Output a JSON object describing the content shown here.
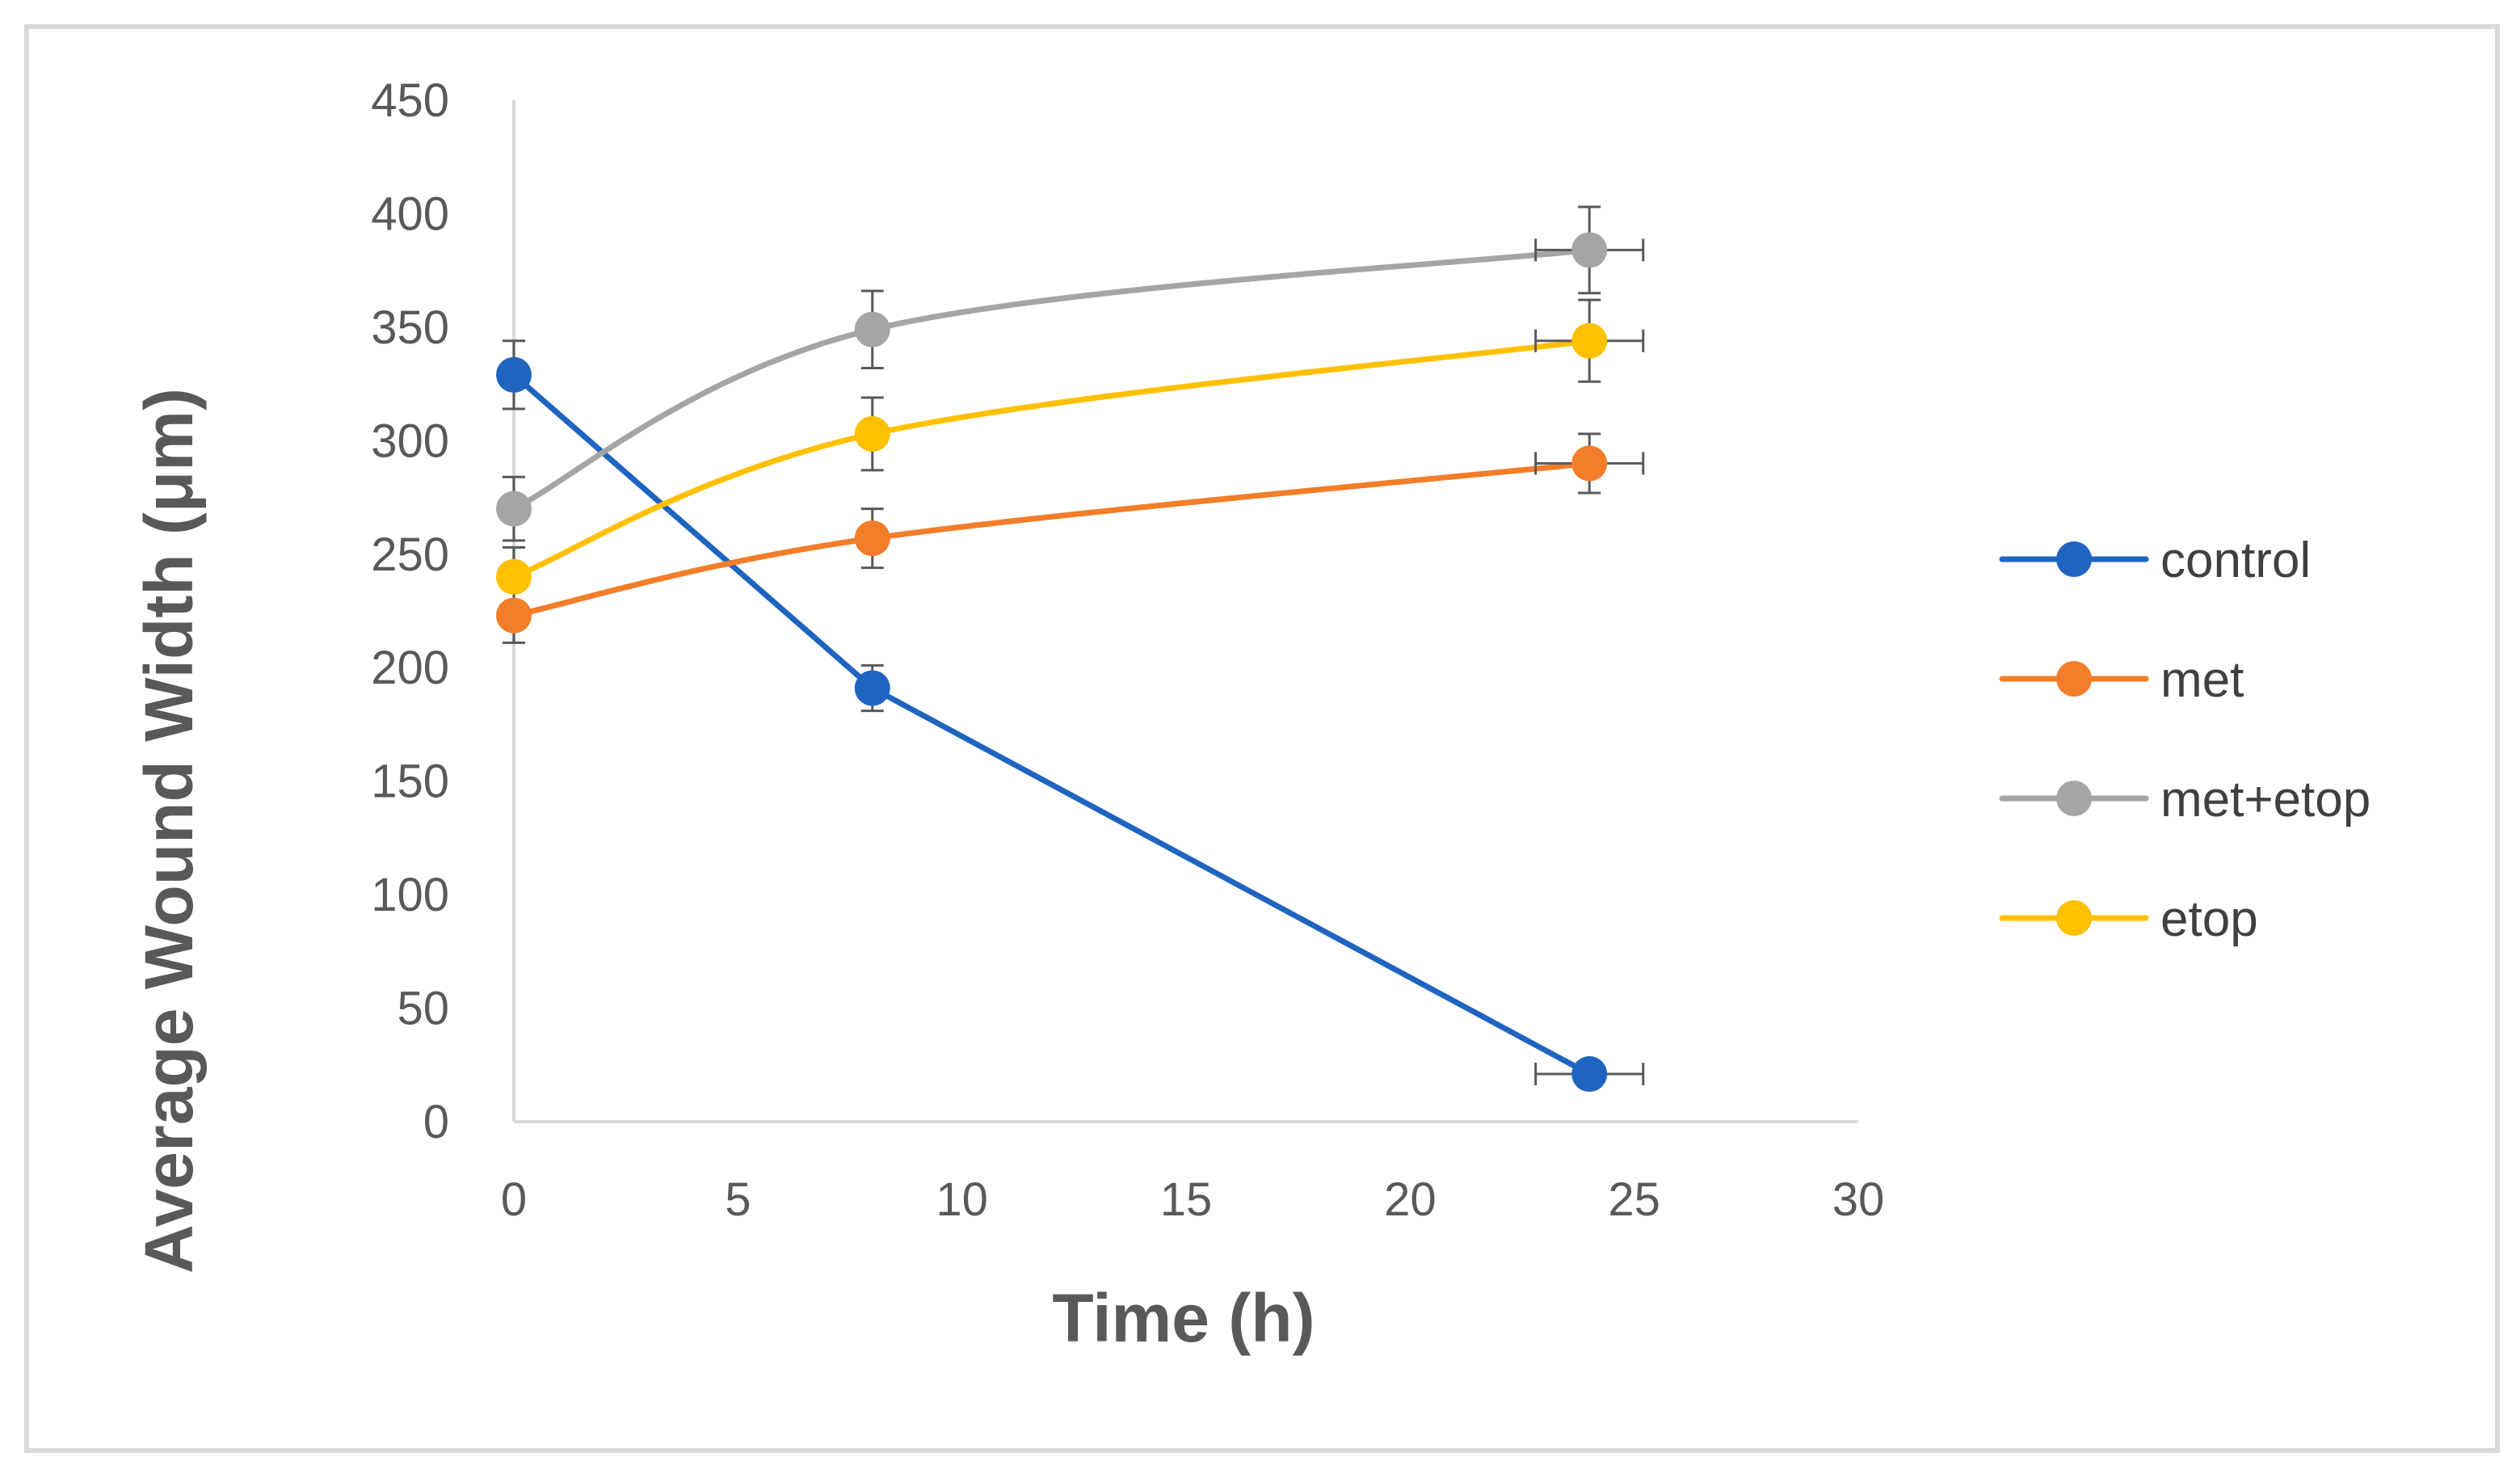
{
  "chart_data": {
    "type": "line",
    "title": "",
    "xlabel": "Time (h)",
    "ylabel": "Average Wound Width (μm)",
    "xlim": [
      0,
      30
    ],
    "ylim": [
      0,
      450
    ],
    "xticks": [
      0,
      5,
      10,
      15,
      20,
      25,
      30
    ],
    "yticks": [
      0,
      50,
      100,
      150,
      200,
      250,
      300,
      350,
      400,
      450
    ],
    "grid": false,
    "legend_position": "right",
    "x": [
      0,
      8,
      24
    ],
    "series": [
      {
        "name": "control",
        "color": "#1f64c0",
        "values": [
          329,
          191,
          21
        ],
        "yerr": [
          15,
          10,
          0
        ],
        "xerr": [
          0,
          0,
          1.2
        ],
        "smooth": false
      },
      {
        "name": "met",
        "color": "#f37d28",
        "values": [
          223,
          257,
          290
        ],
        "yerr": [
          12,
          13,
          13
        ],
        "xerr": [
          0,
          0,
          1.2
        ],
        "smooth": true
      },
      {
        "name": "met+etop",
        "color": "#a5a5a5",
        "values": [
          270,
          349,
          384
        ],
        "yerr": [
          14,
          17,
          19
        ],
        "xerr": [
          0,
          0,
          1.2
        ],
        "smooth": true
      },
      {
        "name": "etop",
        "color": "#ffc000",
        "values": [
          240,
          303,
          344
        ],
        "yerr": [
          13,
          16,
          18
        ],
        "xerr": [
          0,
          0,
          1.2
        ],
        "smooth": true
      }
    ]
  }
}
